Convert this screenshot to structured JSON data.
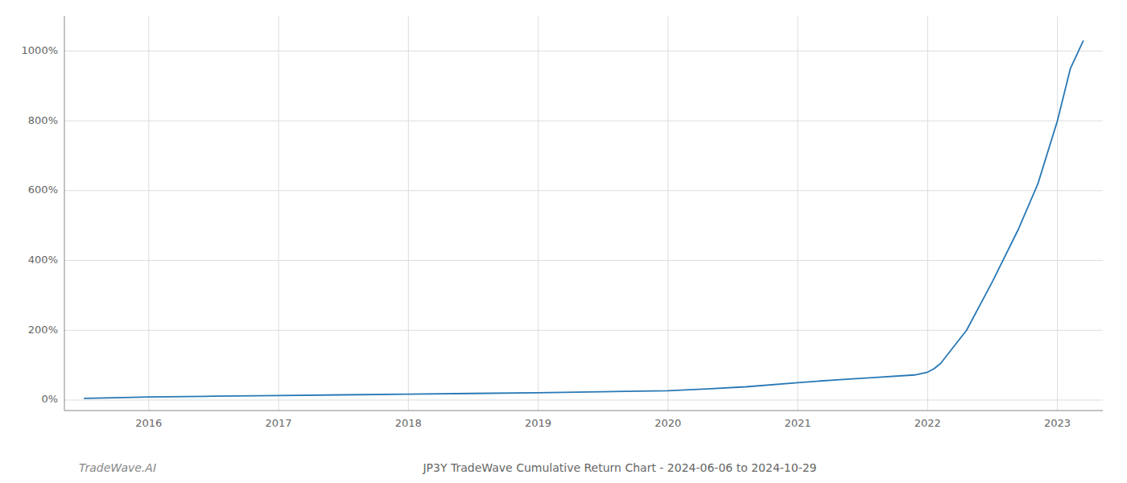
{
  "chart_data": {
    "type": "line",
    "title": "JP3Y TradeWave Cumulative Return Chart - 2024-06-06 to 2024-10-29",
    "annotations": [
      "TradeWave.AI"
    ],
    "color": "#2878b5",
    "x": [
      2015.5,
      2015.8,
      2016.0,
      2016.5,
      2017.0,
      2017.5,
      2018.0,
      2018.5,
      2019.0,
      2019.5,
      2020.0,
      2020.3,
      2020.6,
      2021.0,
      2021.3,
      2021.6,
      2021.9,
      2022.0,
      2022.05,
      2022.1,
      2022.3,
      2022.5,
      2022.7,
      2022.85,
      2023.0,
      2023.1,
      2023.2
    ],
    "values": [
      5,
      7,
      9,
      11,
      13,
      15,
      17,
      19,
      21,
      24,
      27,
      32,
      38,
      50,
      58,
      65,
      72,
      80,
      90,
      105,
      200,
      340,
      490,
      620,
      800,
      950,
      1030
    ],
    "xlim": [
      2015.35,
      2023.35
    ],
    "xticks": [
      2016,
      2017,
      2018,
      2019,
      2020,
      2021,
      2022,
      2023
    ],
    "ylim": [
      -30,
      1100
    ],
    "yticks": [
      {
        "value": 0,
        "label": "0%"
      },
      {
        "value": 200,
        "label": "200%"
      },
      {
        "value": 400,
        "label": "400%"
      },
      {
        "value": 600,
        "label": "600%"
      },
      {
        "value": 800,
        "label": "800%"
      },
      {
        "value": 1000,
        "label": "1000%"
      }
    ],
    "grid": true
  }
}
